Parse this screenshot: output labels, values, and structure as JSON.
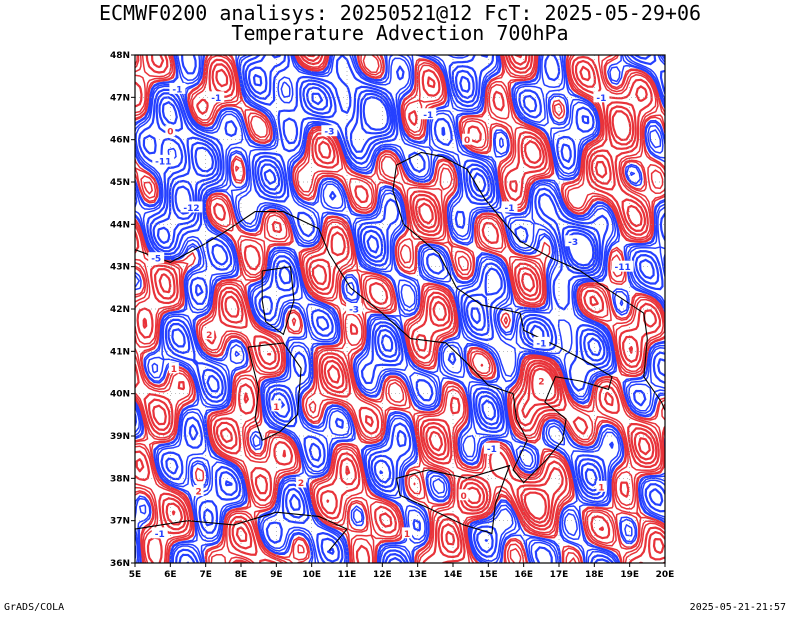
{
  "title_line1": "ECMWF0200 analisys: 20250521@12 FcT: 2025-05-29+06",
  "title_line2": "Temperature Advection 700hPa",
  "footer_left": "GrADS/COLA",
  "footer_right": "2025-05-21-21:57",
  "lon_ticks": [
    "5E",
    "6E",
    "7E",
    "8E",
    "9E",
    "10E",
    "11E",
    "12E",
    "13E",
    "14E",
    "15E",
    "16E",
    "17E",
    "18E",
    "19E",
    "20E"
  ],
  "lat_ticks": [
    "48N",
    "47N",
    "46N",
    "45N",
    "44N",
    "43N",
    "42N",
    "41N",
    "40N",
    "39N",
    "38N",
    "37N",
    "36N"
  ],
  "colors": {
    "positive": "#e8333a",
    "negative": "#2540ff",
    "coast": "#000000",
    "grid": "#999999"
  },
  "map_data": {
    "lon_range": [
      5,
      20
    ],
    "lat_range": [
      36,
      48
    ],
    "contour_labels": [
      {
        "lon": 6.2,
        "lat": 47.2,
        "text": "-1",
        "sign": "neg"
      },
      {
        "lon": 7.3,
        "lat": 47.0,
        "text": "-1",
        "sign": "neg"
      },
      {
        "lon": 10.5,
        "lat": 46.2,
        "text": "-3",
        "sign": "neg"
      },
      {
        "lon": 13.3,
        "lat": 46.6,
        "text": "-1",
        "sign": "neg"
      },
      {
        "lon": 18.2,
        "lat": 47.0,
        "text": "-1",
        "sign": "neg"
      },
      {
        "lon": 5.8,
        "lat": 45.5,
        "text": "-11",
        "sign": "neg"
      },
      {
        "lon": 6.6,
        "lat": 44.4,
        "text": "-12",
        "sign": "neg"
      },
      {
        "lon": 5.6,
        "lat": 43.2,
        "text": "-5",
        "sign": "neg"
      },
      {
        "lon": 11.2,
        "lat": 42.0,
        "text": "-3",
        "sign": "neg"
      },
      {
        "lon": 15.6,
        "lat": 44.4,
        "text": "-1",
        "sign": "neg"
      },
      {
        "lon": 17.4,
        "lat": 43.6,
        "text": "-3",
        "sign": "neg"
      },
      {
        "lon": 18.8,
        "lat": 43.0,
        "text": "-11",
        "sign": "neg"
      },
      {
        "lon": 16.5,
        "lat": 41.2,
        "text": "-1",
        "sign": "neg"
      },
      {
        "lon": 5.7,
        "lat": 36.7,
        "text": "-1",
        "sign": "neg"
      },
      {
        "lon": 15.1,
        "lat": 38.7,
        "text": "-1",
        "sign": "neg"
      },
      {
        "lon": 6.0,
        "lat": 46.2,
        "text": "0",
        "sign": "pos"
      },
      {
        "lon": 14.4,
        "lat": 46.0,
        "text": "0",
        "sign": "pos"
      },
      {
        "lon": 7.1,
        "lat": 41.4,
        "text": "2",
        "sign": "pos"
      },
      {
        "lon": 6.1,
        "lat": 40.6,
        "text": "1",
        "sign": "pos"
      },
      {
        "lon": 9.7,
        "lat": 37.9,
        "text": "2",
        "sign": "pos"
      },
      {
        "lon": 6.8,
        "lat": 37.7,
        "text": "2",
        "sign": "pos"
      },
      {
        "lon": 16.5,
        "lat": 40.3,
        "text": "2",
        "sign": "pos"
      },
      {
        "lon": 18.2,
        "lat": 37.8,
        "text": "1",
        "sign": "pos"
      },
      {
        "lon": 14.3,
        "lat": 37.6,
        "text": "0",
        "sign": "pos"
      },
      {
        "lon": 9.0,
        "lat": 39.7,
        "text": "1",
        "sign": "pos"
      },
      {
        "lon": 12.7,
        "lat": 36.7,
        "text": "1",
        "sign": "pos"
      }
    ]
  }
}
